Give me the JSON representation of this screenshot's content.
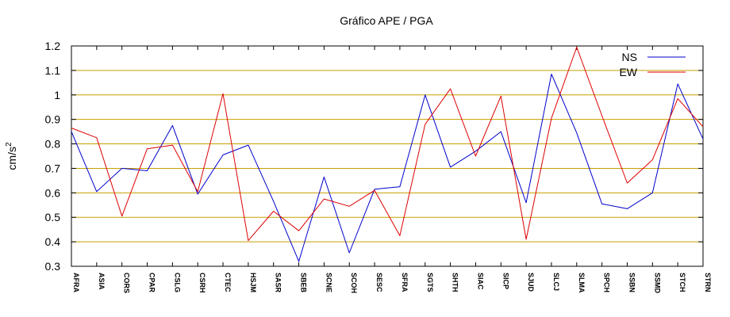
{
  "chart_data": {
    "type": "line",
    "title": "Gráfico  APE / PGA",
    "ylabel": "cm/s",
    "ylabel_superscript": "2",
    "xlabel": "",
    "ylim": [
      0.3,
      1.2
    ],
    "yticks": [
      "0.3",
      "0.4",
      "0.5",
      "0.6",
      "0.7",
      "0.8",
      "0.9",
      "1",
      "1.1",
      "1.2"
    ],
    "grid": "horizontal",
    "legend_position": "top-right",
    "categories": [
      "AFRA",
      "ASIA",
      "CORS",
      "CPAR",
      "CSLG",
      "CSRH",
      "CTEC",
      "HSJM",
      "SASR",
      "SBEB",
      "SCNE",
      "SCOH",
      "SESC",
      "SFRA",
      "SGTS",
      "SHTH",
      "SIAC",
      "SICP",
      "SJUD",
      "SLCJ",
      "SLMA",
      "SPCH",
      "SSBN",
      "SSMD",
      "STCH",
      "STRN"
    ],
    "series": [
      {
        "name": "NS",
        "color": "#0000cc",
        "values": [
          0.85,
          0.605,
          0.7,
          0.69,
          0.875,
          0.595,
          0.755,
          0.795,
          0.565,
          0.32,
          0.665,
          0.355,
          0.615,
          0.625,
          1.0,
          0.705,
          0.77,
          0.85,
          0.56,
          1.085,
          0.845,
          0.555,
          0.535,
          0.6,
          1.045,
          0.82
        ]
      },
      {
        "name": "EW",
        "color": "#dd0000",
        "values": [
          0.865,
          0.825,
          0.505,
          0.78,
          0.795,
          0.605,
          1.005,
          0.405,
          0.525,
          0.445,
          0.575,
          0.545,
          0.61,
          0.425,
          0.88,
          1.025,
          0.75,
          0.995,
          0.41,
          0.905,
          1.195,
          0.915,
          0.64,
          0.735,
          0.985,
          0.87
        ]
      }
    ],
    "colors": {
      "grid": "#c8a000",
      "axis": "#000000"
    }
  }
}
